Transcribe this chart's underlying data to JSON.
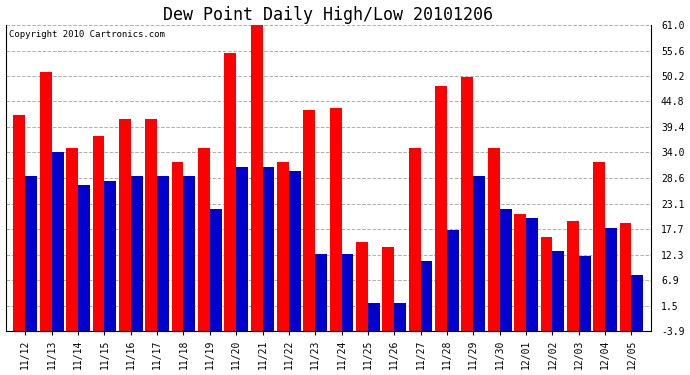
{
  "title": "Dew Point Daily High/Low 20101206",
  "copyright": "Copyright 2010 Cartronics.com",
  "categories": [
    "11/12",
    "11/13",
    "11/14",
    "11/15",
    "11/16",
    "11/17",
    "11/18",
    "11/19",
    "11/20",
    "11/21",
    "11/22",
    "11/23",
    "11/24",
    "11/25",
    "11/26",
    "11/27",
    "11/28",
    "11/29",
    "11/30",
    "12/01",
    "12/02",
    "12/03",
    "12/04",
    "12/05"
  ],
  "highs": [
    42.0,
    51.0,
    35.0,
    37.5,
    41.0,
    41.0,
    32.0,
    35.0,
    55.0,
    62.0,
    32.0,
    43.0,
    43.5,
    15.0,
    14.0,
    35.0,
    48.0,
    50.0,
    35.0,
    21.0,
    16.0,
    19.5,
    32.0,
    19.0
  ],
  "lows": [
    29.0,
    34.0,
    27.0,
    28.0,
    29.0,
    29.0,
    29.0,
    22.0,
    31.0,
    31.0,
    30.0,
    12.5,
    12.5,
    2.0,
    2.0,
    11.0,
    17.5,
    29.0,
    22.0,
    20.0,
    13.0,
    12.0,
    18.0,
    8.0
  ],
  "high_color": "#ff0000",
  "low_color": "#0000cc",
  "bg_color": "#ffffff",
  "plot_bg_color": "#ffffff",
  "grid_color": "#b0b0b0",
  "ymin": -3.9,
  "ymax": 61.0,
  "yticks": [
    -3.9,
    1.5,
    6.9,
    12.3,
    17.7,
    23.1,
    28.6,
    34.0,
    39.4,
    44.8,
    50.2,
    55.6,
    61.0
  ],
  "bar_width": 0.45,
  "title_fontsize": 12,
  "tick_fontsize": 7,
  "copyright_fontsize": 6.5
}
